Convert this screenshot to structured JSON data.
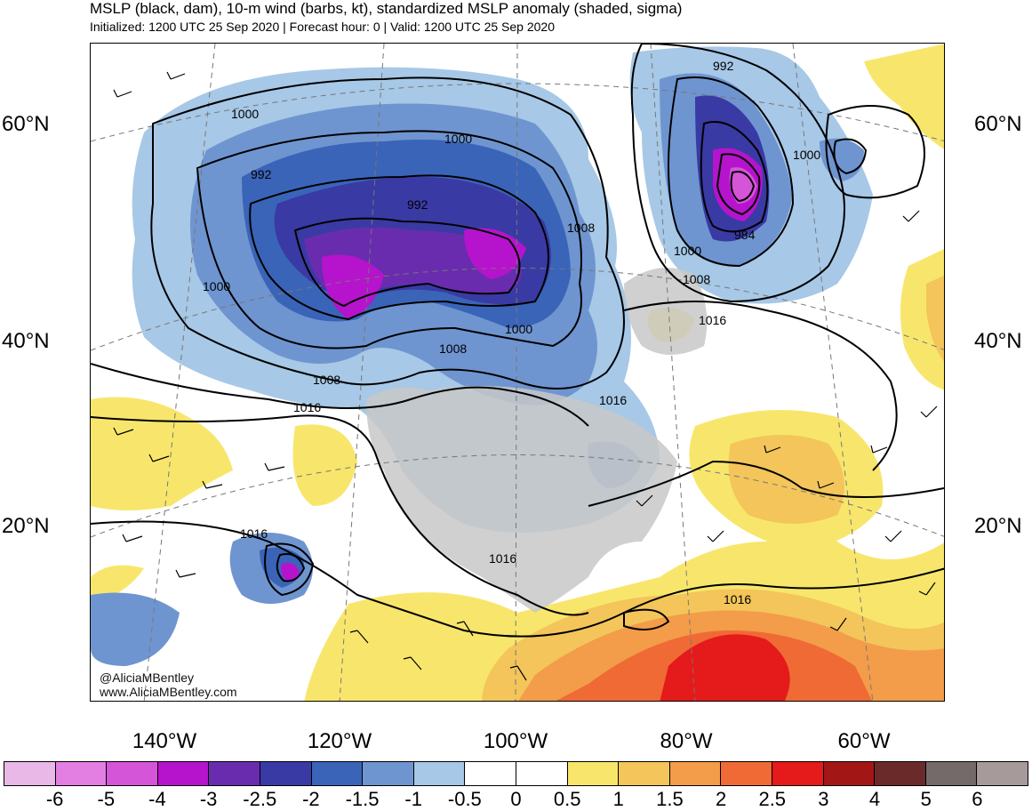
{
  "title": "MSLP (black, dam), 10-m wind (barbs, kt), standardized MSLP anomaly (shaded, sigma)",
  "subtitle": "Initialized: 1200 UTC 25 Sep 2020 | Forecast hour: 0 | Valid: 1200 UTC 25 Sep 2020",
  "credit": {
    "handle": "@AliciaMBentley",
    "website": "www.AliciaMBentley.com"
  },
  "lat_labels": [
    "60°N",
    "40°N",
    "20°N"
  ],
  "lon_labels": [
    "140°W",
    "120°W",
    "100°W",
    "80°W",
    "60°W"
  ],
  "contour_labels": [
    "1000",
    "992",
    "1000",
    "992",
    "1000",
    "1008",
    "1016",
    "1008",
    "1000",
    "1008",
    "992",
    "1000",
    "984",
    "1000",
    "1008",
    "1016",
    "1016",
    "1016",
    "1016",
    "1016"
  ],
  "colorbar": {
    "labels": [
      "-6",
      "-5",
      "-4",
      "-3",
      "-2.5",
      "-2",
      "-1.5",
      "-1",
      "-0.5",
      "0",
      "0.5",
      "1",
      "1.5",
      "2",
      "2.5",
      "3",
      "4",
      "5",
      "6"
    ],
    "colors": [
      "#e9b8e6",
      "#e37fe3",
      "#d455d8",
      "#b514cc",
      "#6a2cae",
      "#3a3aa4",
      "#3a64b8",
      "#6f95d0",
      "#a7c8e6",
      "#ffffff",
      "#ffffff",
      "#f8e66c",
      "#f3c55a",
      "#f39c4a",
      "#ef6a35",
      "#e51a1a",
      "#a31616",
      "#6b2a2a",
      "#746a6a",
      "#a69a9a"
    ]
  },
  "colors": {
    "land": "#c8c8c8",
    "contour": "#000000",
    "coast": "#555555"
  }
}
